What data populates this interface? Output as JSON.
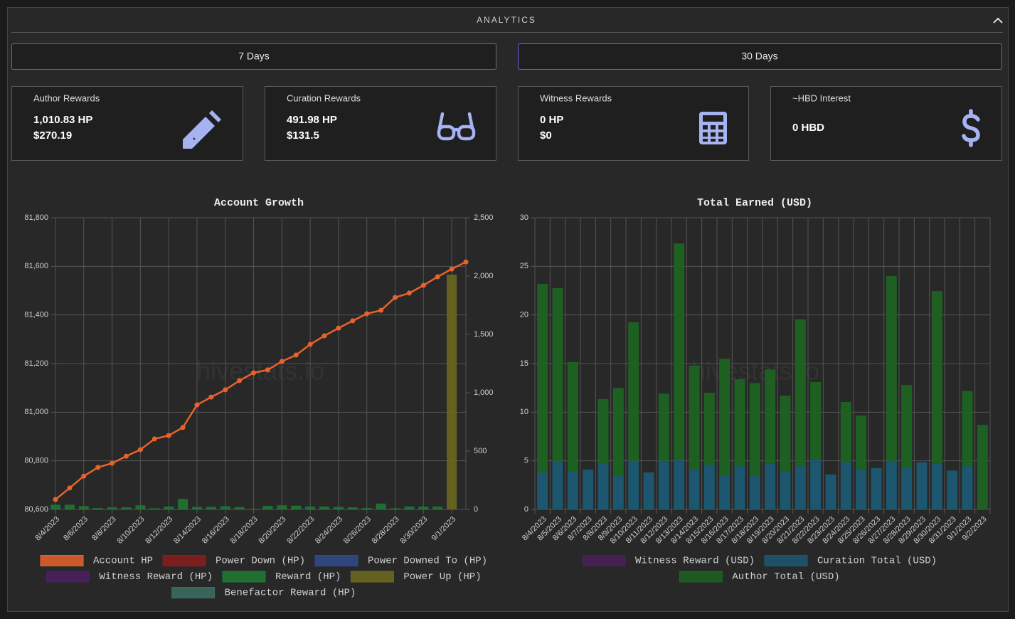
{
  "header": {
    "title": "ANALYTICS"
  },
  "buttons": [
    "7 Days",
    "30 Days"
  ],
  "cards": [
    {
      "title": "Author Rewards",
      "lines": [
        "1,010.83 HP",
        "$270.19"
      ]
    },
    {
      "title": "Curation Rewards",
      "lines": [
        "491.98 HP",
        "$131.5"
      ]
    },
    {
      "title": "Witness Rewards",
      "lines": [
        "0 HP",
        "$0"
      ]
    },
    {
      "title": "~HBD Interest",
      "lines": [
        "0 HBD"
      ]
    }
  ],
  "chart_data": [
    {
      "type": "combo",
      "title": "Account Growth",
      "watermark": "hivestats.io",
      "grid": true,
      "legend": "bottom",
      "categories": [
        "8/4/2023",
        null,
        "8/6/2023",
        null,
        "8/8/2023",
        null,
        "8/10/2023",
        null,
        "8/12/2023",
        null,
        "8/14/2023",
        null,
        "8/16/2023",
        null,
        "8/18/2023",
        null,
        "8/20/2023",
        null,
        "8/22/2023",
        null,
        "8/24/2023",
        null,
        "8/26/2023",
        null,
        "8/28/2023",
        null,
        "8/30/2023",
        null,
        "9/1/2023",
        null
      ],
      "ylim": [
        80600,
        81800
      ],
      "yticks": [
        {
          "value": 80600,
          "label": "80,600"
        },
        {
          "value": 80800,
          "label": "80,800"
        },
        {
          "value": 81000,
          "label": "81,000"
        },
        {
          "value": 81200,
          "label": "81,200"
        },
        {
          "value": 81400,
          "label": "81,400"
        },
        {
          "value": 81600,
          "label": "81,600"
        },
        {
          "value": 81800,
          "label": "81,800"
        }
      ],
      "y2lim": [
        0,
        2500
      ],
      "y2ticks": [
        0,
        500,
        {
          "value": 1000,
          "label": "1,000"
        },
        {
          "value": 1500,
          "label": "1,500"
        },
        {
          "value": 2000,
          "label": "2,000"
        },
        {
          "value": 2500,
          "label": "2,500"
        }
      ],
      "series": [
        {
          "name": "Account HP",
          "type": "line",
          "axis": "y",
          "color": "#e8622c",
          "values": [
            80641,
            80688,
            80737,
            80773,
            80790,
            80819,
            80846,
            80890,
            80904,
            80937,
            81030,
            81062,
            81092,
            81130,
            81162,
            81174,
            81209,
            81235,
            81279,
            81314,
            81346,
            81376,
            81405,
            81419,
            81472,
            81490,
            81522,
            81557,
            81589,
            81618
          ]
        },
        {
          "name": "Power Down (HP)",
          "type": "bar",
          "axis": "y2",
          "color": "#8b1c1c",
          "values": [
            0,
            0,
            0,
            0,
            0,
            0,
            0,
            0,
            0,
            0,
            0,
            0,
            0,
            0,
            0,
            0,
            0,
            0,
            0,
            0,
            0,
            0,
            0,
            0,
            0,
            0,
            0,
            0,
            0,
            0
          ]
        },
        {
          "name": "Power Downed To (HP)",
          "type": "bar",
          "axis": "y2",
          "color": "#2f4b8c",
          "values": [
            0,
            0,
            0,
            0,
            0,
            0,
            0,
            0,
            0,
            0,
            0,
            0,
            0,
            0,
            0,
            0,
            0,
            0,
            0,
            0,
            0,
            0,
            0,
            0,
            0,
            0,
            0,
            0,
            0,
            0
          ]
        },
        {
          "name": "Witness Reward (HP)",
          "type": "bar",
          "axis": "y2",
          "color": "#4a2060",
          "values": [
            0,
            0,
            0,
            0,
            0,
            0,
            0,
            0,
            0,
            0,
            0,
            0,
            0,
            0,
            0,
            0,
            0,
            0,
            0,
            0,
            0,
            0,
            0,
            0,
            0,
            0,
            0,
            0,
            0,
            0
          ]
        },
        {
          "name": "Reward (HP)",
          "type": "bar",
          "axis": "y2",
          "color": "#1e7b34",
          "values": [
            40,
            40,
            28,
            12,
            18,
            18,
            35,
            10,
            25,
            90,
            22,
            22,
            28,
            20,
            6,
            30,
            35,
            32,
            25,
            25,
            22,
            18,
            12,
            50,
            10,
            25,
            25,
            25,
            0,
            0
          ]
        },
        {
          "name": "Power Up (HP)",
          "type": "bar",
          "axis": "y2",
          "color": "#6e6b1f",
          "values": [
            0,
            0,
            0,
            0,
            0,
            0,
            0,
            0,
            0,
            0,
            0,
            0,
            0,
            0,
            0,
            0,
            0,
            0,
            0,
            0,
            0,
            0,
            0,
            0,
            0,
            0,
            0,
            0,
            2012,
            0
          ]
        },
        {
          "name": "Benefactor Reward (HP)",
          "type": "bar",
          "axis": "y2",
          "color": "#3b6e63",
          "values": [
            0,
            0,
            0,
            0,
            0,
            0,
            0,
            0,
            0,
            0,
            0,
            0,
            0,
            0,
            0,
            0,
            0,
            0,
            0,
            0,
            0,
            0,
            0,
            0,
            0,
            0,
            0,
            0,
            0,
            0
          ]
        }
      ]
    },
    {
      "type": "bar",
      "stacked": true,
      "title": "Total Earned (USD)",
      "watermark": "hivestats.io",
      "grid": true,
      "legend": "bottom",
      "categories": [
        "8/4/2023",
        "8/5/2023",
        "8/6/2023",
        "8/7/2023",
        "8/8/2023",
        "8/9/2023",
        "8/10/2023",
        "8/11/2023",
        "8/12/2023",
        "8/13/2023",
        "8/14/2023",
        "8/15/2023",
        "8/16/2023",
        "8/17/2023",
        "8/18/2023",
        "8/19/2023",
        "8/20/2023",
        "8/21/2023",
        "8/22/2023",
        "8/23/2023",
        "8/24/2023",
        "8/25/2023",
        "8/26/2023",
        "8/27/2023",
        "8/28/2023",
        "8/29/2023",
        "8/30/2023",
        "8/31/2023",
        "9/1/2023",
        "9/2/2023"
      ],
      "ylim": [
        0,
        30
      ],
      "yticks": [
        0,
        5,
        10,
        15,
        20,
        25,
        30
      ],
      "series": [
        {
          "name": "Witness Reward (USD)",
          "color": "#4a2058",
          "values": [
            0,
            0,
            0,
            0,
            0,
            0,
            0,
            0,
            0,
            0,
            0,
            0,
            0,
            0,
            0,
            0,
            0,
            0,
            0,
            0,
            0,
            0,
            0,
            0,
            0,
            0,
            0,
            0,
            0,
            0
          ]
        },
        {
          "name": "Curation Total (USD)",
          "color": "#1c5873",
          "values": [
            3.8,
            5.0,
            3.95,
            4.1,
            4.75,
            3.5,
            5.0,
            3.8,
            5.0,
            5.2,
            4.15,
            4.6,
            3.5,
            4.45,
            3.5,
            4.7,
            3.9,
            4.45,
            5.1,
            3.6,
            4.85,
            4.15,
            4.25,
            5.0,
            4.3,
            4.85,
            4.7,
            4.0,
            4.45,
            0
          ]
        },
        {
          "name": "Author Total (USD)",
          "color": "#1d6322",
          "values": [
            19.4,
            17.75,
            11.2,
            0,
            6.6,
            9.0,
            14.25,
            0,
            6.9,
            22.15,
            10.65,
            7.4,
            12.0,
            8.95,
            9.5,
            9.7,
            7.8,
            15.1,
            8.0,
            0,
            6.2,
            5.5,
            0,
            19.0,
            8.5,
            0,
            17.75,
            0,
            7.75,
            8.7
          ]
        }
      ]
    }
  ]
}
